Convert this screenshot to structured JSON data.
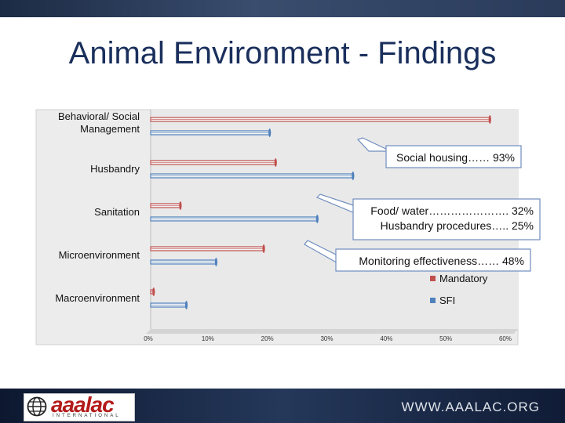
{
  "slide": {
    "title": "Animal Environment - Findings",
    "website": "WWW.AAALAC.ORG",
    "logo_text": "aaalac",
    "logo_subtext": "INTERNATIONAL"
  },
  "chart_data": {
    "type": "bar",
    "orientation": "horizontal",
    "categories": [
      "Behavioral/ Social Management",
      "Husbandry",
      "Sanitation",
      "Microenvironment",
      "Macroenvironment"
    ],
    "series": [
      {
        "name": "Mandatory",
        "color": "#c0504d",
        "values": [
          57,
          21,
          5,
          19,
          0.5
        ]
      },
      {
        "name": "SFI",
        "color": "#4f81bd",
        "values": [
          20,
          34,
          28,
          11,
          6
        ]
      }
    ],
    "xlim": [
      0,
      60
    ],
    "xticks": [
      "0%",
      "10%",
      "20%",
      "30%",
      "40%",
      "50%",
      "60%"
    ],
    "legend": "bottom-right",
    "grid": false,
    "annotations": [
      {
        "lines": [
          "Social housing…… 93%"
        ]
      },
      {
        "lines": [
          "Food/ water…………………. 32%",
          "Husbandry procedures….. 25%"
        ]
      },
      {
        "lines": [
          "Monitoring effectiveness…… 48%"
        ]
      }
    ]
  }
}
